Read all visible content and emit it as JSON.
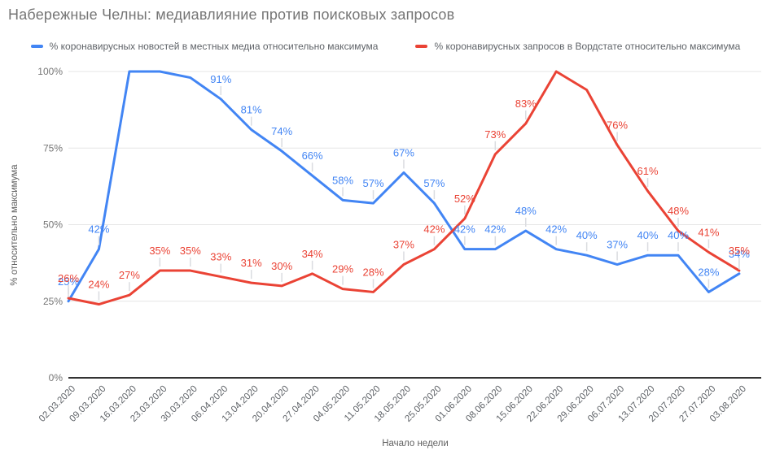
{
  "title": "Набережные Челны: медиавлияние против поисковых запросов",
  "chart_data": {
    "type": "line",
    "title": "Набережные Челны: медиавлияние против поисковых запросов",
    "xlabel": "Начало недели",
    "ylabel": "% относительно максимума",
    "ylim": [
      0,
      100
    ],
    "yticks": [
      0,
      25,
      50,
      75,
      100
    ],
    "ytick_labels": [
      "0%",
      "25%",
      "50%",
      "75%",
      "100%"
    ],
    "grid": true,
    "legend_position": "top",
    "grid_color": "#e6e6e6",
    "baseline_color": "#333333",
    "leader_color": "#dadce0",
    "x": [
      "02.03.2020",
      "09.03.2020",
      "16.03.2020",
      "23.03.2020",
      "30.03.2020",
      "06.04.2020",
      "13.04.2020",
      "20.04.2020",
      "27.04.2020",
      "04.05.2020",
      "11.05.2020",
      "18.05.2020",
      "25.05.2020",
      "01.06.2020",
      "08.06.2020",
      "15.06.2020",
      "22.06.2020",
      "29.06.2020",
      "06.07.2020",
      "13.07.2020",
      "20.07.2020",
      "27.07.2020",
      "03.08.2020"
    ],
    "series": [
      {
        "name": "% коронавирусных новостей в местных медиа относительно максимума",
        "color": "#4285f4",
        "values": [
          25,
          42,
          100,
          100,
          98,
          91,
          81,
          74,
          66,
          58,
          57,
          67,
          57,
          42,
          42,
          48,
          42,
          40,
          37,
          40,
          40,
          28,
          34
        ],
        "unlabeled_points": [
          "16.03.2020",
          "23.03.2020",
          "30.03.2020"
        ]
      },
      {
        "name": "% коронавирусных запросов в Вордстате относительно максимума",
        "color": "#ea4335",
        "values": [
          26,
          24,
          27,
          35,
          35,
          33,
          31,
          30,
          34,
          29,
          28,
          37,
          42,
          52,
          73,
          83,
          100,
          94,
          76,
          61,
          48,
          41,
          35
        ],
        "unlabeled_points": [
          "22.06.2020",
          "29.06.2020"
        ]
      }
    ]
  }
}
